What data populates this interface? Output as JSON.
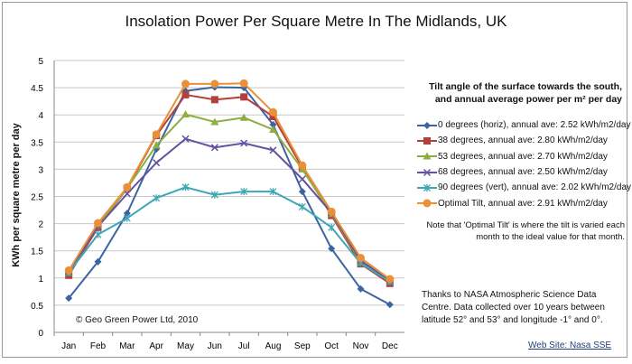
{
  "chart_data": {
    "type": "line",
    "title": "Insolation Power Per Square Metre In The Midlands, UK",
    "xlabel": "",
    "ylabel": "KWh per square metre per day",
    "ylim": [
      0,
      5
    ],
    "yticks": [
      "0",
      "0.5",
      "1",
      "1.5",
      "2",
      "2.5",
      "3",
      "3.5",
      "4",
      "4.5",
      "5"
    ],
    "grid": true,
    "legend_position": "right",
    "legend_title": "Tilt angle of the surface towards the south, and annual average power per m² per day",
    "categories": [
      "Jan",
      "Feb",
      "Mar",
      "Apr",
      "May",
      "Jun",
      "Jul",
      "Aug",
      "Sep",
      "Oct",
      "Nov",
      "Dec"
    ],
    "series": [
      {
        "name": "0 degrees (horiz), annual ave: 2.52 kWh/m2/day",
        "color": "#3b64a3",
        "marker": "diamond",
        "values": [
          0.63,
          1.3,
          2.19,
          3.37,
          4.44,
          4.51,
          4.5,
          3.82,
          2.59,
          1.54,
          0.8,
          0.51
        ]
      },
      {
        "name": "38 degrees, annual ave: 2.80 kWh/m2/day",
        "color": "#b3403c",
        "marker": "square",
        "values": [
          1.05,
          1.93,
          2.65,
          3.62,
          4.37,
          4.28,
          4.33,
          3.97,
          3.03,
          2.15,
          1.26,
          0.9
        ]
      },
      {
        "name": "53 degrees, annual ave: 2.70 kWh/m2/day",
        "color": "#8dae40",
        "marker": "triangle",
        "values": [
          1.1,
          1.96,
          2.65,
          3.44,
          4.01,
          3.87,
          3.95,
          3.73,
          3.0,
          2.18,
          1.3,
          0.95
        ]
      },
      {
        "name": "68 degrees, annual ave: 2.50 kWh/m2/day",
        "color": "#6650a0",
        "marker": "x",
        "values": [
          1.12,
          1.95,
          2.55,
          3.12,
          3.56,
          3.4,
          3.48,
          3.35,
          2.82,
          2.2,
          1.32,
          0.96
        ]
      },
      {
        "name": "90 degrees (vert), annual ave: 2.02 kWh/m2/day",
        "color": "#3ea6b6",
        "marker": "star",
        "values": [
          1.1,
          1.8,
          2.1,
          2.47,
          2.67,
          2.53,
          2.59,
          2.59,
          2.31,
          1.93,
          1.27,
          0.93
        ]
      },
      {
        "name": "Optimal Tilt, annual ave: 2.91 kWh/m2/day",
        "color": "#ea9038",
        "marker": "circle",
        "values": [
          1.14,
          2.01,
          2.67,
          3.64,
          4.57,
          4.57,
          4.58,
          4.05,
          3.07,
          2.22,
          1.37,
          0.98
        ]
      }
    ],
    "annotations": {
      "copyright": "© Geo Green Power Ltd, 2010",
      "note": "Note that 'Optimal Tilt' is where the tilt is varied each month to the ideal value for that month.",
      "thanks": "Thanks to NASA Atmospheric Science Data Centre.  Data collected over 10 years between latitude 52° and 53° and longitude -1° and 0°.",
      "link": "Web Site: Nasa SSE"
    }
  }
}
